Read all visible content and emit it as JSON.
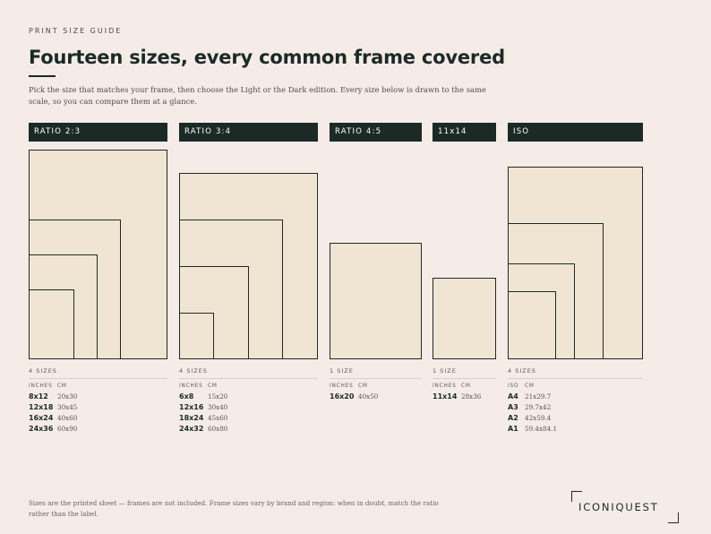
{
  "eyebrow": "PRINT SIZE GUIDE",
  "title": "Fourteen sizes, every common frame covered",
  "intro": "Pick the size that matches your frame, then choose the Light or the Dark edition. Every size below is drawn to the same scale, so you can compare them at a glance.",
  "colors": {
    "ink": "#1c2a27",
    "paper": "#f0e5d3",
    "background": "#f5ebe7"
  },
  "groups": [
    {
      "header": "RATIO 2:3",
      "count": "4 SIZES",
      "col_a": "INCHES",
      "col_b": "CM",
      "rows": [
        {
          "size": "8x12",
          "cm": "20x30"
        },
        {
          "size": "12x18",
          "cm": "30x45"
        },
        {
          "size": "16x24",
          "cm": "40x60"
        },
        {
          "size": "24x36",
          "cm": "60x90"
        }
      ]
    },
    {
      "header": "RATIO 3:4",
      "count": "4 SIZES",
      "col_a": "INCHES",
      "col_b": "CM",
      "rows": [
        {
          "size": "6x8",
          "cm": "15x20"
        },
        {
          "size": "12x16",
          "cm": "30x40"
        },
        {
          "size": "18x24",
          "cm": "45x60"
        },
        {
          "size": "24x32",
          "cm": "60x80"
        }
      ]
    },
    {
      "header": "RATIO 4:5",
      "count": "1 SIZE",
      "col_a": "INCHES",
      "col_b": "CM",
      "rows": [
        {
          "size": "16x20",
          "cm": "40x50"
        }
      ]
    },
    {
      "header": "11x14",
      "count": "1 SIZE",
      "col_a": "INCHES",
      "col_b": "CM",
      "rows": [
        {
          "size": "11x14",
          "cm": "28x36"
        }
      ]
    },
    {
      "header": "ISO",
      "count": "4 SIZES",
      "col_a": "ISO",
      "col_b": "CM",
      "rows": [
        {
          "size": "A4",
          "cm": "21x29.7"
        },
        {
          "size": "A3",
          "cm": "29.7x42"
        },
        {
          "size": "A2",
          "cm": "42x59.4"
        },
        {
          "size": "A1",
          "cm": "59.4x84.1"
        }
      ]
    }
  ],
  "footnote": "Sizes are the printed sheet — frames are not included. Frame sizes vary by brand and region: when in doubt, match the ratio rather than the label.",
  "logo": {
    "text": "ICONIQUEST"
  }
}
